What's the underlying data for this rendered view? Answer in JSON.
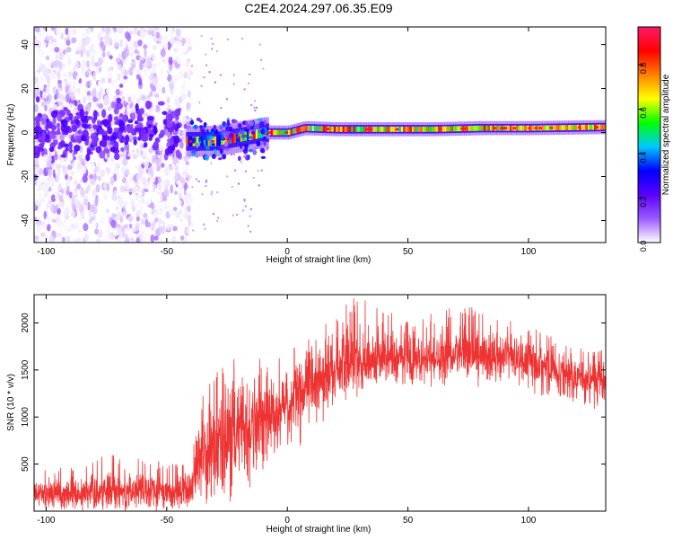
{
  "title": "C2E4.2024.297.06.35.E09",
  "chart_data": [
    {
      "type": "heatmap",
      "xlabel": "Height of straight line (km)",
      "ylabel": "Frequency (Hz)",
      "xlim": [
        -105,
        132
      ],
      "ylim": [
        -50,
        48
      ],
      "x_ticks": [
        -100,
        -50,
        0,
        50,
        100
      ],
      "x_tick_labels": [
        "-100",
        "-50",
        "0",
        "50",
        "100"
      ],
      "y_ticks": [
        -40,
        -20,
        0,
        20,
        40
      ],
      "y_tick_labels": [
        "-40",
        "-20",
        "0",
        "20",
        "40"
      ],
      "colorbar": {
        "label": "Normalized spectral amplitude",
        "range": [
          0,
          0.97
        ],
        "ticks": [
          0.0,
          0.2,
          0.4,
          0.6,
          0.8
        ],
        "tick_labels": [
          "0.0",
          "0.2",
          "0.4",
          "0.6",
          "0.8"
        ],
        "colormap": [
          "#ffffff",
          "#9b59ff",
          "#5a00ff",
          "#0000ff",
          "#00c8ff",
          "#00ff00",
          "#ffff00",
          "#ff8000",
          "#ff0000",
          "#ff1a66"
        ]
      },
      "regions": [
        {
          "x_range": [
            -105,
            -40
          ],
          "freq_range": [
            -50,
            48
          ],
          "amplitude_range": [
            0.0,
            0.2
          ],
          "pattern": "broadband noise, denser near 0 Hz"
        },
        {
          "x_range": [
            -40,
            -8
          ],
          "freq_range": [
            -8,
            4
          ],
          "amplitude_range": [
            0.2,
            0.9
          ],
          "pattern": "onset of narrow signal"
        },
        {
          "x_range": [
            -8,
            132
          ],
          "freq_range": [
            -2,
            4
          ],
          "amplitude_range": [
            0.2,
            0.97
          ],
          "pattern": "narrow band near 0-2 Hz"
        }
      ],
      "ridge": {
        "x": [
          -42,
          -30,
          -20,
          -10,
          0,
          7,
          20,
          40,
          60,
          80,
          100,
          132
        ],
        "freq": [
          -4,
          -4,
          -2,
          0,
          0,
          2,
          1.5,
          1.5,
          1.5,
          2,
          2,
          2.5
        ]
      }
    },
    {
      "type": "line",
      "xlabel": "Height of straight line (km)",
      "ylabel": "SNR (10 * v/v)",
      "xlim": [
        -105,
        132
      ],
      "ylim": [
        0,
        2300
      ],
      "x_ticks": [
        -100,
        -50,
        0,
        50,
        100
      ],
      "x_tick_labels": [
        "-100",
        "-50",
        "0",
        "50",
        "100"
      ],
      "y_ticks": [
        500,
        1000,
        1500,
        2000
      ],
      "y_tick_labels": [
        "500",
        "1000",
        "1500",
        "2000"
      ],
      "color": "#ee3333",
      "series": [
        {
          "name": "",
          "x": [
            -105,
            -90,
            -75,
            -60,
            -45,
            -40,
            -35,
            -30,
            -25,
            -20,
            -15,
            -10,
            -5,
            0,
            5,
            10,
            20,
            30,
            40,
            50,
            60,
            70,
            80,
            90,
            100,
            110,
            120,
            132
          ],
          "mean": [
            180,
            200,
            220,
            220,
            210,
            240,
            650,
            700,
            800,
            950,
            900,
            1000,
            1050,
            1150,
            1200,
            1350,
            1550,
            1620,
            1640,
            1620,
            1620,
            1650,
            1680,
            1660,
            1620,
            1500,
            1450,
            1380
          ],
          "upper": [
            430,
            480,
            600,
            580,
            500,
            560,
            1300,
            1500,
            1700,
            1900,
            1750,
            1600,
            1600,
            1700,
            1800,
            1900,
            2150,
            2300,
            2150,
            2050,
            2100,
            2200,
            2150,
            2050,
            2000,
            1850,
            1750,
            1700
          ],
          "lower": [
            20,
            20,
            30,
            30,
            20,
            20,
            50,
            60,
            80,
            100,
            300,
            450,
            600,
            700,
            600,
            800,
            1100,
            1300,
            1350,
            1300,
            1350,
            1400,
            1400,
            1350,
            1250,
            1200,
            1150,
            1000
          ]
        }
      ]
    }
  ]
}
